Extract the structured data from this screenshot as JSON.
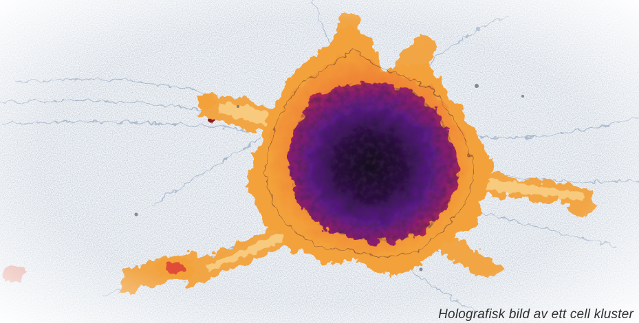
{
  "image": {
    "subject": "cell-cluster",
    "palette": {
      "background": "#ffffff",
      "haze": "#e8eef5",
      "fiber": "#9fb0c6",
      "fiber_dark": "#3c4a5e",
      "orange": "#f3a23a",
      "orange_light": "#f9d48c",
      "red": "#d9383a",
      "magenta": "#a4205a",
      "purple": "#5a1a86",
      "core": "#140a1c"
    }
  },
  "caption": {
    "text": "Holografisk bild av ett cell kluster"
  }
}
